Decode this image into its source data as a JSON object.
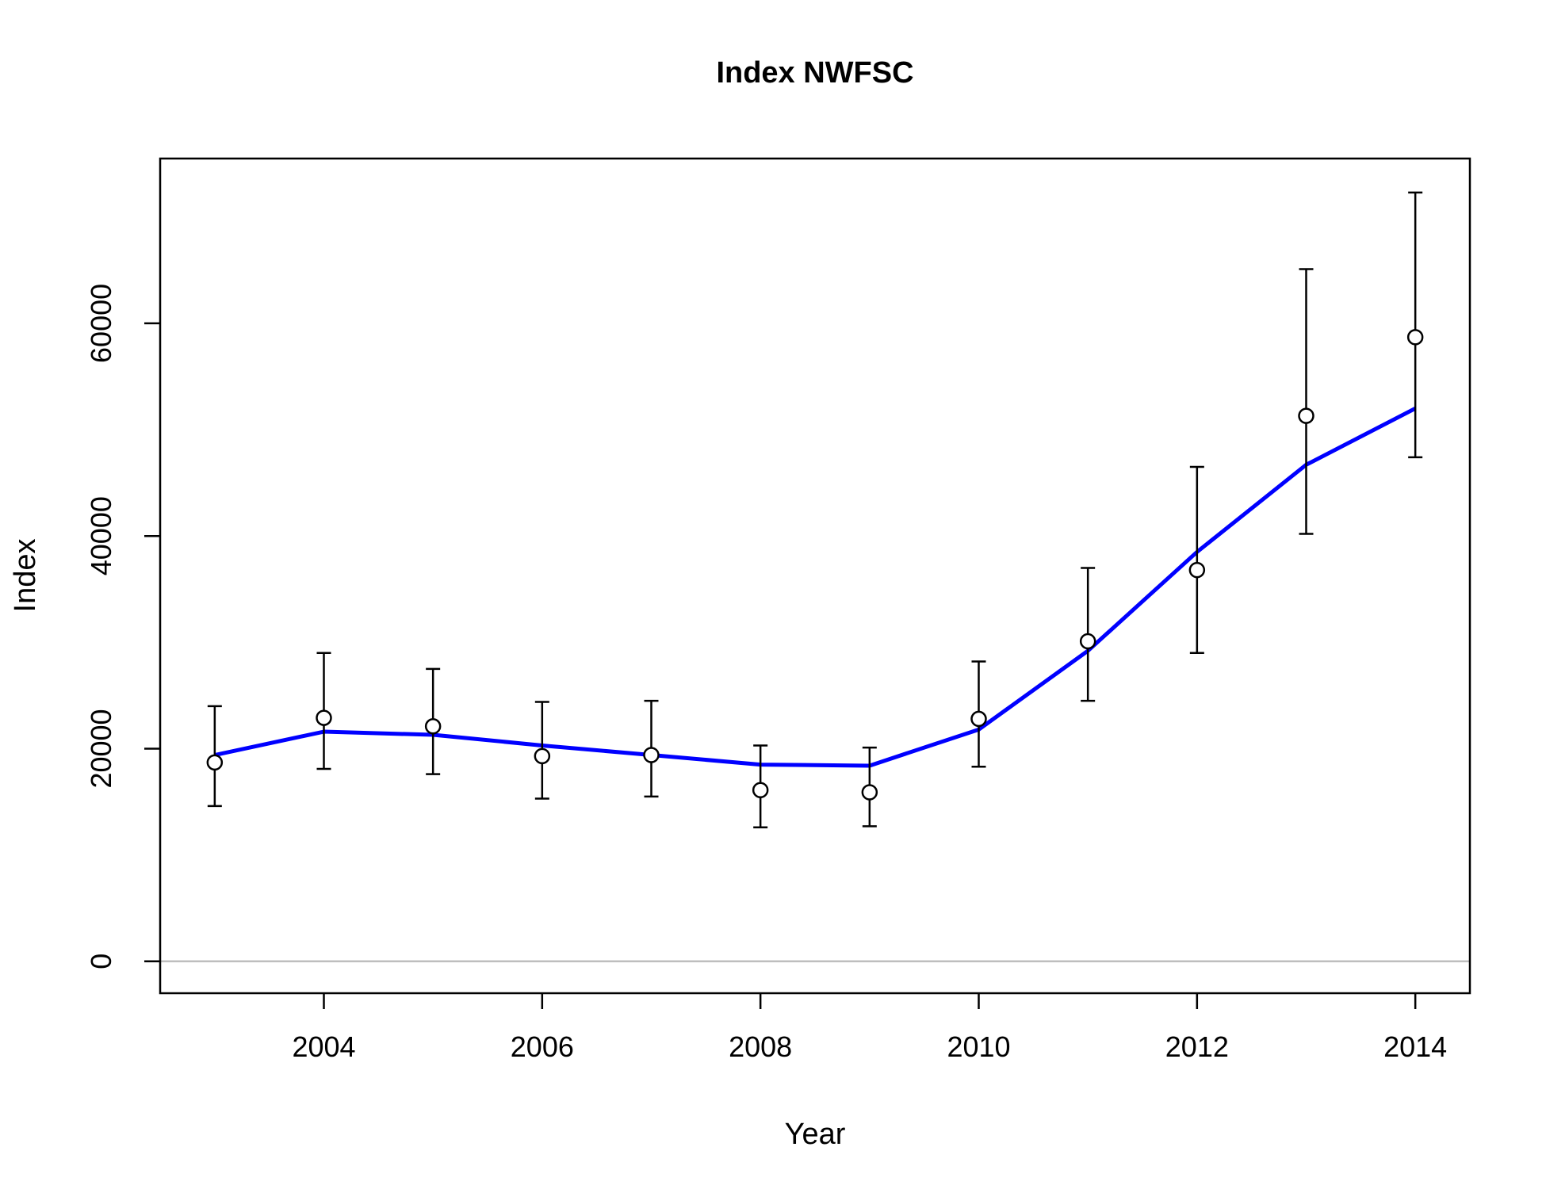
{
  "chart_data": {
    "type": "line",
    "title": "Index NWFSC",
    "xlabel": "Year",
    "ylabel": "Index",
    "x_ticks": [
      2004,
      2006,
      2008,
      2010,
      2012,
      2014
    ],
    "y_ticks": [
      0,
      20000,
      40000,
      60000
    ],
    "xlim": [
      2002.5,
      2014.5
    ],
    "ylim": [
      -3000,
      75500
    ],
    "grid": false,
    "legend": "none",
    "reference_line": {
      "y": 0,
      "color": "#bebebe"
    },
    "series": [
      {
        "kind": "observed",
        "style": "open circles with error bars",
        "color": "#000000",
        "x": [
          2003,
          2004,
          2005,
          2006,
          2007,
          2008,
          2009,
          2010,
          2011,
          2012,
          2013,
          2014
        ],
        "y": [
          18700,
          22900,
          22100,
          19300,
          19400,
          16100,
          15900,
          22800,
          30100,
          36800,
          51300,
          58700
        ],
        "lower": [
          14600,
          18100,
          17600,
          15300,
          15500,
          12600,
          12700,
          18300,
          24500,
          29000,
          40200,
          47400
        ],
        "upper": [
          24000,
          29000,
          27500,
          24400,
          24500,
          20300,
          20100,
          28200,
          37000,
          46500,
          65100,
          72300
        ]
      },
      {
        "kind": "fitted",
        "style": "line",
        "color": "#0000ff",
        "x": [
          2003,
          2004,
          2005,
          2006,
          2007,
          2008,
          2009,
          2010,
          2011,
          2012,
          2013,
          2014
        ],
        "y": [
          19400,
          21600,
          21300,
          20300,
          19400,
          18500,
          18400,
          21800,
          29200,
          38500,
          46700,
          52000
        ]
      }
    ]
  }
}
